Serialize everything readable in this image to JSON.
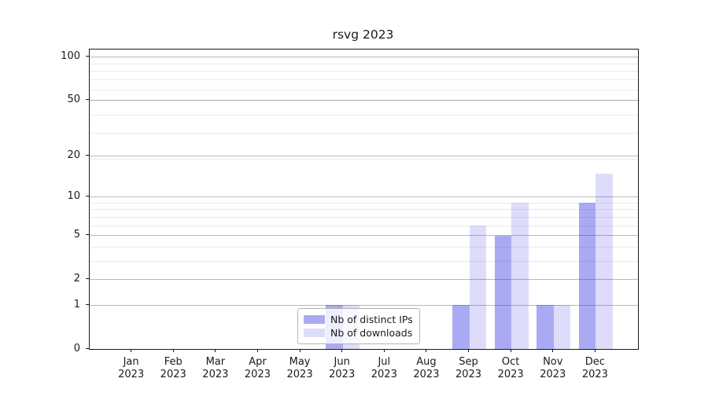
{
  "chart_data": {
    "type": "bar",
    "title": "rsvg 2023",
    "categories": [
      "Jan 2023",
      "Feb 2023",
      "Mar 2023",
      "Apr 2023",
      "May 2023",
      "Jun 2023",
      "Jul 2023",
      "Aug 2023",
      "Sep 2023",
      "Oct 2023",
      "Nov 2023",
      "Dec 2023"
    ],
    "series": [
      {
        "name": "Nb of distinct IPs",
        "values": [
          0,
          0,
          0,
          0,
          0,
          1,
          0,
          0,
          1,
          5,
          1,
          9
        ],
        "color": "rgba(42,42,228,0.40)"
      },
      {
        "name": "Nb of downloads",
        "values": [
          0,
          0,
          0,
          0,
          0,
          1,
          0,
          0,
          6,
          9,
          1,
          15
        ],
        "color": "rgba(42,42,228,0.16)"
      }
    ],
    "y_axis": {
      "scale": "log1p",
      "ticks": [
        0,
        1,
        2,
        5,
        10,
        20,
        50,
        100
      ],
      "minor_gridlines": [
        3,
        4,
        6,
        7,
        8,
        9,
        19,
        29,
        39,
        49,
        59,
        69,
        79,
        89
      ],
      "top_value": 112
    },
    "grid": true,
    "legend_position": "bottom-center",
    "colors": {
      "bar_ips": "rgba(42,42,228,0.40)",
      "bar_downloads": "rgba(42,42,228,0.16)",
      "grid_major": "#b9b9b9",
      "grid_minor": "#eaeaea",
      "spine": "#1a1a1a"
    }
  },
  "legend": {
    "items": [
      {
        "label": "Nb of distinct IPs"
      },
      {
        "label": "Nb of downloads"
      }
    ]
  }
}
